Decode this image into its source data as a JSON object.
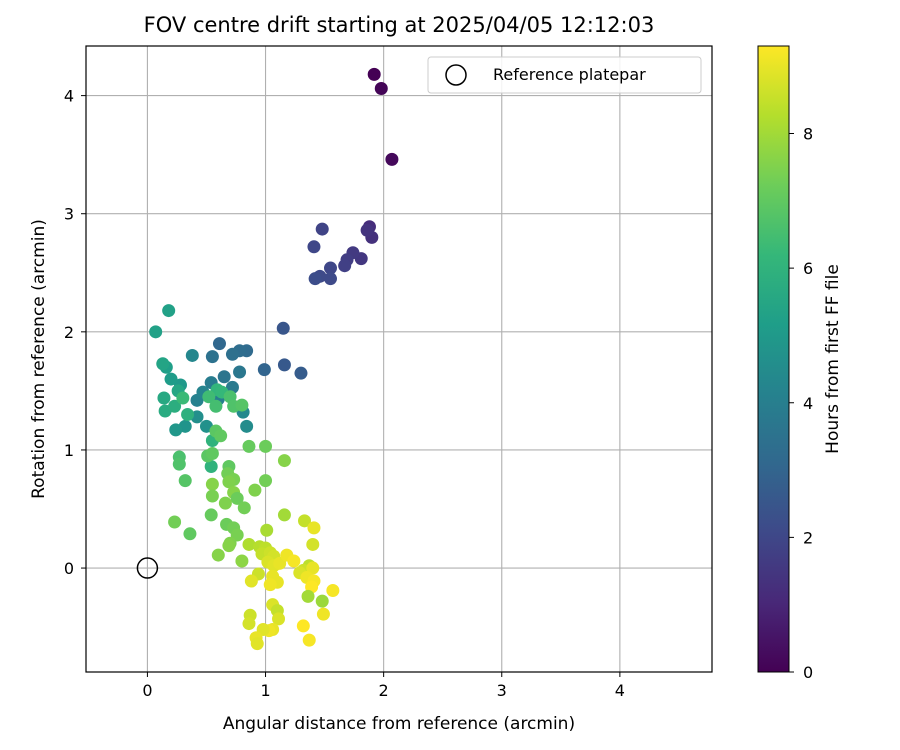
{
  "chart_data": {
    "type": "scatter",
    "title": "FOV centre drift starting at 2025/04/05 12:12:03",
    "xlabel": "Angular distance from reference (arcmin)",
    "ylabel": "Rotation from reference (arcmin)",
    "xlim": [
      -0.52,
      4.78
    ],
    "ylim": [
      -0.88,
      4.42
    ],
    "xticks": [
      0,
      1,
      2,
      3,
      4
    ],
    "yticks": [
      0,
      1,
      2,
      3,
      4
    ],
    "grid": true,
    "legend": {
      "position": "top-right",
      "entries": [
        "Reference platepar"
      ]
    },
    "reference_point": {
      "x": 0,
      "y": 0,
      "label": "Reference platepar"
    },
    "colorbar": {
      "label": "Hours from first FF file",
      "colormap": "viridis",
      "range": [
        0,
        9.3
      ],
      "ticks": [
        0,
        2,
        4,
        6,
        8
      ]
    },
    "points": [
      {
        "x": 1.92,
        "y": 4.18,
        "c": 0.0
      },
      {
        "x": 1.98,
        "y": 4.06,
        "c": 0.1
      },
      {
        "x": 2.07,
        "y": 3.46,
        "c": 0.2
      },
      {
        "x": 1.88,
        "y": 2.89,
        "c": 1.2
      },
      {
        "x": 1.9,
        "y": 2.8,
        "c": 1.3
      },
      {
        "x": 1.86,
        "y": 2.86,
        "c": 1.4
      },
      {
        "x": 1.81,
        "y": 2.62,
        "c": 1.5
      },
      {
        "x": 1.74,
        "y": 2.67,
        "c": 1.6
      },
      {
        "x": 1.69,
        "y": 2.61,
        "c": 1.7
      },
      {
        "x": 1.67,
        "y": 2.56,
        "c": 1.8
      },
      {
        "x": 1.48,
        "y": 2.87,
        "c": 1.9
      },
      {
        "x": 1.41,
        "y": 2.72,
        "c": 2.0
      },
      {
        "x": 1.55,
        "y": 2.54,
        "c": 2.0
      },
      {
        "x": 1.55,
        "y": 2.45,
        "c": 2.1
      },
      {
        "x": 1.46,
        "y": 2.47,
        "c": 2.1
      },
      {
        "x": 1.42,
        "y": 2.45,
        "c": 2.2
      },
      {
        "x": 1.15,
        "y": 2.03,
        "c": 2.5
      },
      {
        "x": 1.16,
        "y": 1.72,
        "c": 2.6
      },
      {
        "x": 1.3,
        "y": 1.65,
        "c": 2.7
      },
      {
        "x": 0.99,
        "y": 1.68,
        "c": 3.0
      },
      {
        "x": 0.61,
        "y": 1.9,
        "c": 3.1
      },
      {
        "x": 0.84,
        "y": 1.84,
        "c": 3.2
      },
      {
        "x": 0.78,
        "y": 1.84,
        "c": 3.3
      },
      {
        "x": 0.72,
        "y": 1.81,
        "c": 3.4
      },
      {
        "x": 0.55,
        "y": 1.79,
        "c": 3.5
      },
      {
        "x": 0.65,
        "y": 1.62,
        "c": 3.6
      },
      {
        "x": 0.78,
        "y": 1.66,
        "c": 3.7
      },
      {
        "x": 0.72,
        "y": 1.53,
        "c": 3.8
      },
      {
        "x": 0.54,
        "y": 1.57,
        "c": 3.9
      },
      {
        "x": 0.6,
        "y": 1.43,
        "c": 4.0
      },
      {
        "x": 0.42,
        "y": 1.42,
        "c": 4.1
      },
      {
        "x": 0.47,
        "y": 1.49,
        "c": 4.2
      },
      {
        "x": 0.38,
        "y": 1.8,
        "c": 4.3
      },
      {
        "x": 0.81,
        "y": 1.32,
        "c": 4.4
      },
      {
        "x": 0.84,
        "y": 1.2,
        "c": 4.5
      },
      {
        "x": 0.42,
        "y": 1.28,
        "c": 4.6
      },
      {
        "x": 0.5,
        "y": 1.2,
        "c": 4.7
      },
      {
        "x": 0.32,
        "y": 1.2,
        "c": 4.8
      },
      {
        "x": 0.24,
        "y": 1.17,
        "c": 4.9
      },
      {
        "x": 0.28,
        "y": 1.55,
        "c": 5.0
      },
      {
        "x": 0.2,
        "y": 1.6,
        "c": 5.1
      },
      {
        "x": 0.16,
        "y": 1.7,
        "c": 5.2
      },
      {
        "x": 0.07,
        "y": 2.0,
        "c": 5.3
      },
      {
        "x": 0.18,
        "y": 2.18,
        "c": 5.3
      },
      {
        "x": 0.13,
        "y": 1.73,
        "c": 5.4
      },
      {
        "x": 0.26,
        "y": 1.5,
        "c": 5.5
      },
      {
        "x": 0.14,
        "y": 1.44,
        "c": 5.6
      },
      {
        "x": 0.15,
        "y": 1.33,
        "c": 5.7
      },
      {
        "x": 0.23,
        "y": 1.37,
        "c": 5.8
      },
      {
        "x": 0.34,
        "y": 1.3,
        "c": 5.9
      },
      {
        "x": 0.55,
        "y": 1.08,
        "c": 6.0
      },
      {
        "x": 0.54,
        "y": 0.86,
        "c": 6.0
      },
      {
        "x": 0.59,
        "y": 1.51,
        "c": 6.1
      },
      {
        "x": 0.63,
        "y": 1.49,
        "c": 6.2
      },
      {
        "x": 0.3,
        "y": 1.44,
        "c": 6.3
      },
      {
        "x": 0.52,
        "y": 1.45,
        "c": 6.4
      },
      {
        "x": 0.58,
        "y": 1.37,
        "c": 6.5
      },
      {
        "x": 0.7,
        "y": 1.45,
        "c": 6.6
      },
      {
        "x": 0.73,
        "y": 1.37,
        "c": 6.7
      },
      {
        "x": 0.8,
        "y": 1.38,
        "c": 6.8
      },
      {
        "x": 0.58,
        "y": 1.16,
        "c": 6.9
      },
      {
        "x": 0.62,
        "y": 1.12,
        "c": 7.0
      },
      {
        "x": 0.27,
        "y": 0.94,
        "c": 6.6
      },
      {
        "x": 0.27,
        "y": 0.88,
        "c": 6.7
      },
      {
        "x": 0.32,
        "y": 0.74,
        "c": 6.8
      },
      {
        "x": 0.51,
        "y": 0.95,
        "c": 6.9
      },
      {
        "x": 0.55,
        "y": 0.97,
        "c": 7.0
      },
      {
        "x": 0.69,
        "y": 0.86,
        "c": 7.0
      },
      {
        "x": 0.86,
        "y": 1.03,
        "c": 7.1
      },
      {
        "x": 1.0,
        "y": 1.03,
        "c": 7.2
      },
      {
        "x": 1.0,
        "y": 0.74,
        "c": 7.3
      },
      {
        "x": 0.68,
        "y": 0.8,
        "c": 7.3
      },
      {
        "x": 0.73,
        "y": 0.75,
        "c": 7.4
      },
      {
        "x": 0.69,
        "y": 0.73,
        "c": 7.5
      },
      {
        "x": 0.73,
        "y": 0.64,
        "c": 7.6
      },
      {
        "x": 0.55,
        "y": 0.71,
        "c": 7.6
      },
      {
        "x": 0.55,
        "y": 0.61,
        "c": 7.4
      },
      {
        "x": 0.76,
        "y": 0.59,
        "c": 7.2
      },
      {
        "x": 0.82,
        "y": 0.51,
        "c": 7.3
      },
      {
        "x": 0.66,
        "y": 0.55,
        "c": 7.5
      },
      {
        "x": 0.91,
        "y": 0.66,
        "c": 7.5
      },
      {
        "x": 1.16,
        "y": 0.91,
        "c": 7.6
      },
      {
        "x": 0.54,
        "y": 0.45,
        "c": 7.1
      },
      {
        "x": 0.67,
        "y": 0.37,
        "c": 7.2
      },
      {
        "x": 0.73,
        "y": 0.34,
        "c": 7.3
      },
      {
        "x": 0.76,
        "y": 0.28,
        "c": 7.4
      },
      {
        "x": 0.7,
        "y": 0.21,
        "c": 7.5
      },
      {
        "x": 0.69,
        "y": 0.19,
        "c": 7.6
      },
      {
        "x": 0.6,
        "y": 0.11,
        "c": 7.6
      },
      {
        "x": 0.8,
        "y": 0.06,
        "c": 7.7
      },
      {
        "x": 0.36,
        "y": 0.29,
        "c": 7.0
      },
      {
        "x": 0.23,
        "y": 0.39,
        "c": 7.3
      },
      {
        "x": 1.16,
        "y": 0.45,
        "c": 8.0
      },
      {
        "x": 1.01,
        "y": 0.32,
        "c": 8.1
      },
      {
        "x": 0.86,
        "y": 0.2,
        "c": 8.2
      },
      {
        "x": 0.95,
        "y": 0.18,
        "c": 8.3
      },
      {
        "x": 1.0,
        "y": 0.17,
        "c": 8.4
      },
      {
        "x": 0.97,
        "y": 0.12,
        "c": 8.5
      },
      {
        "x": 1.04,
        "y": 0.13,
        "c": 8.6
      },
      {
        "x": 1.07,
        "y": 0.1,
        "c": 8.7
      },
      {
        "x": 1.02,
        "y": 0.05,
        "c": 8.8
      },
      {
        "x": 1.07,
        "y": 0.02,
        "c": 8.9
      },
      {
        "x": 1.12,
        "y": 0.04,
        "c": 9.0
      },
      {
        "x": 1.18,
        "y": 0.11,
        "c": 9.1
      },
      {
        "x": 1.24,
        "y": 0.06,
        "c": 9.2
      },
      {
        "x": 1.33,
        "y": 0.4,
        "c": 8.5
      },
      {
        "x": 1.41,
        "y": 0.34,
        "c": 9.0
      },
      {
        "x": 1.4,
        "y": 0.2,
        "c": 8.7
      },
      {
        "x": 1.37,
        "y": 0.02,
        "c": 8.4
      },
      {
        "x": 1.32,
        "y": -0.02,
        "c": 8.6
      },
      {
        "x": 1.29,
        "y": -0.04,
        "c": 8.8
      },
      {
        "x": 1.4,
        "y": 0.0,
        "c": 9.0
      },
      {
        "x": 1.35,
        "y": -0.08,
        "c": 9.1
      },
      {
        "x": 1.41,
        "y": -0.11,
        "c": 9.2
      },
      {
        "x": 1.39,
        "y": -0.16,
        "c": 9.3
      },
      {
        "x": 1.36,
        "y": -0.24,
        "c": 8.0
      },
      {
        "x": 1.48,
        "y": -0.28,
        "c": 7.9
      },
      {
        "x": 1.57,
        "y": -0.19,
        "c": 9.2
      },
      {
        "x": 1.49,
        "y": -0.39,
        "c": 9.1
      },
      {
        "x": 1.37,
        "y": -0.61,
        "c": 9.2
      },
      {
        "x": 1.32,
        "y": -0.49,
        "c": 9.3
      },
      {
        "x": 0.94,
        "y": -0.05,
        "c": 8.6
      },
      {
        "x": 0.88,
        "y": -0.11,
        "c": 8.9
      },
      {
        "x": 1.06,
        "y": -0.07,
        "c": 9.0
      },
      {
        "x": 1.1,
        "y": -0.12,
        "c": 9.0
      },
      {
        "x": 1.04,
        "y": -0.14,
        "c": 9.1
      },
      {
        "x": 1.06,
        "y": -0.31,
        "c": 8.8
      },
      {
        "x": 1.1,
        "y": -0.36,
        "c": 8.5
      },
      {
        "x": 1.11,
        "y": -0.43,
        "c": 8.8
      },
      {
        "x": 1.06,
        "y": -0.52,
        "c": 9.0
      },
      {
        "x": 1.03,
        "y": -0.53,
        "c": 9.1
      },
      {
        "x": 0.98,
        "y": -0.52,
        "c": 8.9
      },
      {
        "x": 0.87,
        "y": -0.4,
        "c": 8.6
      },
      {
        "x": 0.86,
        "y": -0.47,
        "c": 8.7
      },
      {
        "x": 0.92,
        "y": -0.59,
        "c": 9.0
      },
      {
        "x": 0.93,
        "y": -0.64,
        "c": 8.9
      }
    ]
  }
}
